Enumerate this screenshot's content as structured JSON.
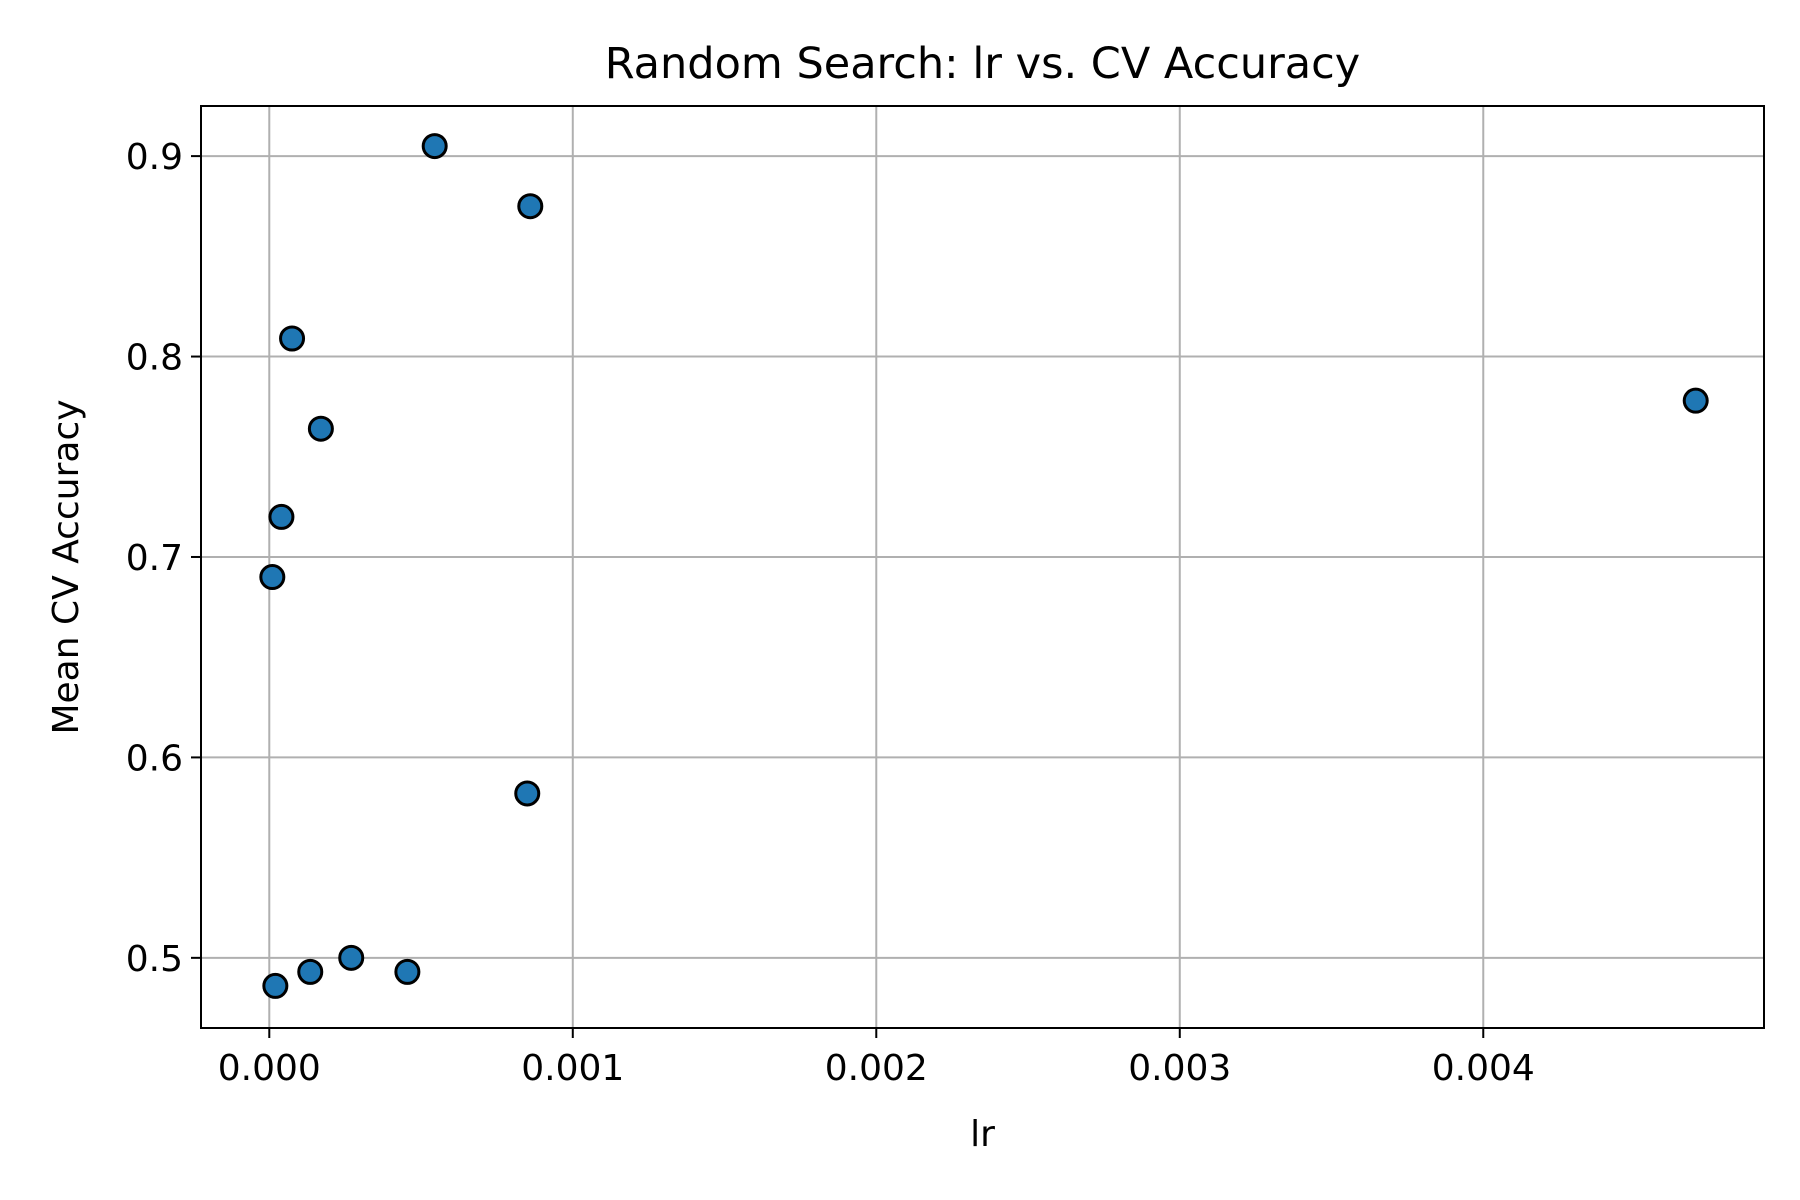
{
  "chart_data": {
    "type": "scatter",
    "title": "Random Search: lr vs. CV Accuracy",
    "xlabel": "lr",
    "ylabel": "Mean CV Accuracy",
    "xlim": [
      -0.000225,
      0.004925
    ],
    "ylim": [
      0.465,
      0.925
    ],
    "xticks": [
      0.0,
      0.001,
      0.002,
      0.003,
      0.004
    ],
    "xtick_labels": [
      "0.000",
      "0.001",
      "0.002",
      "0.003",
      "0.004"
    ],
    "yticks": [
      0.5,
      0.6,
      0.7,
      0.8,
      0.9
    ],
    "ytick_labels": [
      "0.5",
      "0.6",
      "0.7",
      "0.8",
      "0.9"
    ],
    "grid": true,
    "marker_color": "#1f77b4",
    "marker_edge_color": "#000000",
    "points": [
      {
        "x": 0.000545,
        "y": 0.905
      },
      {
        "x": 0.00086,
        "y": 0.875
      },
      {
        "x": 7.5e-05,
        "y": 0.809
      },
      {
        "x": 0.00017,
        "y": 0.764
      },
      {
        "x": 4e-05,
        "y": 0.72
      },
      {
        "x": 1e-05,
        "y": 0.69
      },
      {
        "x": 0.00085,
        "y": 0.582
      },
      {
        "x": 0.00027,
        "y": 0.5
      },
      {
        "x": 0.000135,
        "y": 0.493
      },
      {
        "x": 0.000455,
        "y": 0.493
      },
      {
        "x": 2e-05,
        "y": 0.486
      },
      {
        "x": 0.0047,
        "y": 0.778
      }
    ]
  }
}
